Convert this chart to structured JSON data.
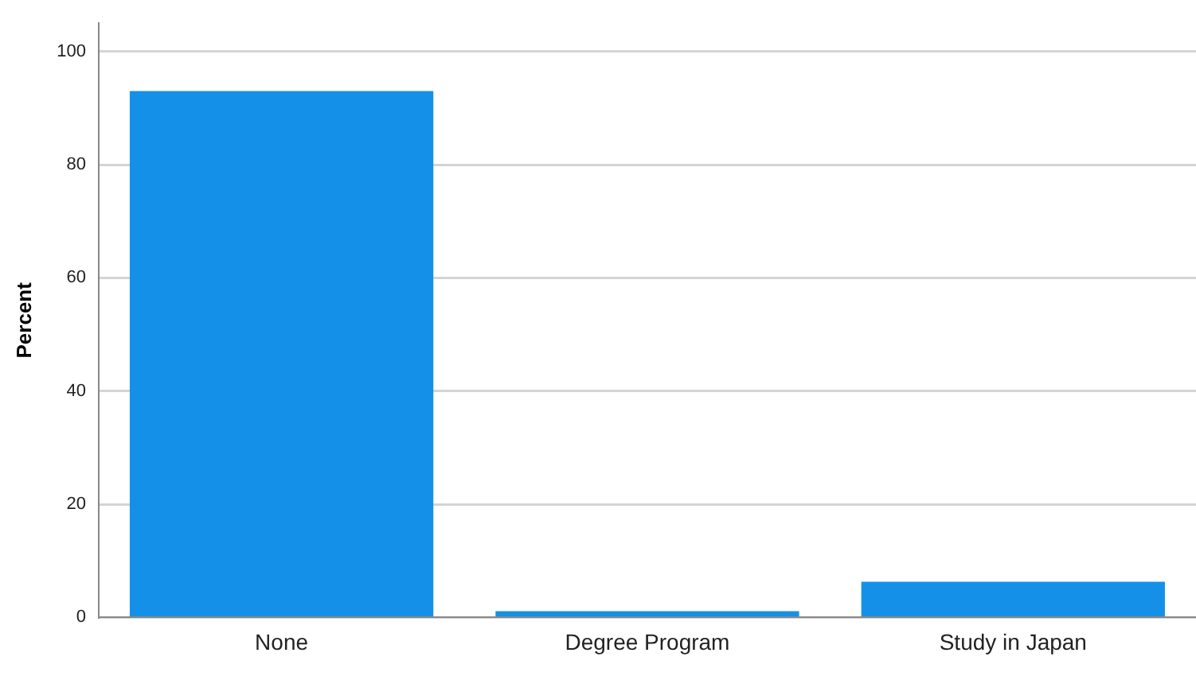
{
  "chart_data": {
    "type": "bar",
    "ylabel": "Percent",
    "categories": [
      "None",
      "Degree Program",
      "Study in Japan"
    ],
    "values": [
      93.0,
      1.1,
      6.3
    ],
    "color": "#1490e8",
    "ylim": [
      0,
      105
    ],
    "yticks": [
      0,
      20,
      40,
      60,
      80,
      100
    ],
    "grid": "y"
  }
}
